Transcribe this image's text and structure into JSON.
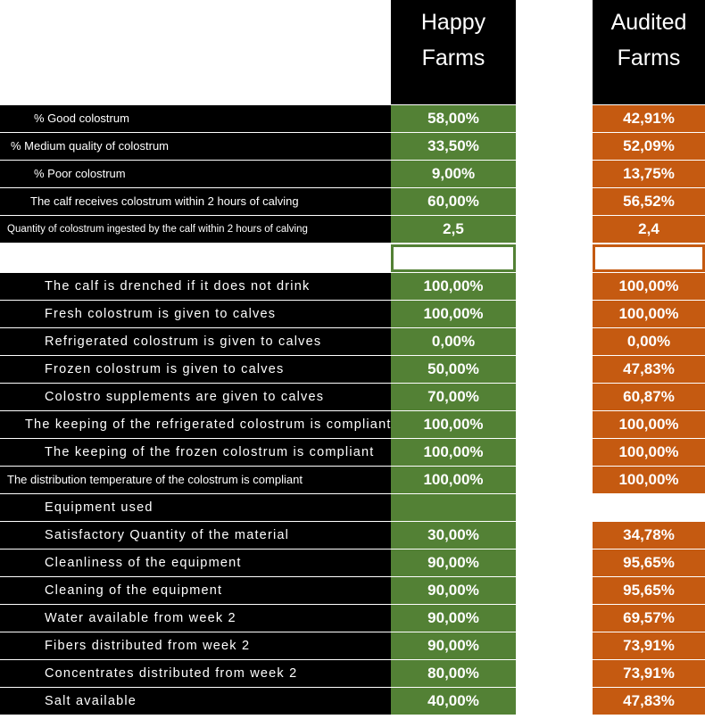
{
  "headers": {
    "happy": [
      "Happy",
      "Farms"
    ],
    "audited": [
      "Audited",
      "Farms"
    ]
  },
  "colors": {
    "happy": "#538135",
    "audited": "#c55a11",
    "label_bg": "#000000"
  },
  "section1": [
    {
      "label": "% Good colostrum",
      "happy": "58,00%",
      "audited": "42,91%"
    },
    {
      "label": "% Medium quality of colostrum",
      "happy": "33,50%",
      "audited": "52,09%"
    },
    {
      "label": "% Poor colostrum",
      "happy": "9,00%",
      "audited": "13,75%"
    },
    {
      "label": "The calf receives colostrum within 2 hours of calving",
      "happy": "60,00%",
      "audited": "56,52%"
    },
    {
      "label": "Quantity of colostrum ingested by the calf within 2 hours of calving",
      "happy": "2,5",
      "audited": "2,4"
    }
  ],
  "section2": [
    {
      "label": "The calf is drenched if it does not drink",
      "happy": "100,00%",
      "audited": "100,00%"
    },
    {
      "label": "Fresh colostrum is given to calves",
      "happy": "100,00%",
      "audited": "100,00%"
    },
    {
      "label": "Refrigerated colostrum is given to calves",
      "happy": "0,00%",
      "audited": "0,00%"
    },
    {
      "label": "Frozen colostrum is given to calves",
      "happy": "50,00%",
      "audited": "47,83%"
    },
    {
      "label": "Colostro supplements  are given to calves",
      "happy": "70,00%",
      "audited": "60,87%"
    },
    {
      "label": "The keeping of the  refrigerated colostrum is compliant",
      "happy": "100,00%",
      "audited": "100,00%"
    },
    {
      "label": "The keeping of the frozen colostrum is compliant",
      "happy": "100,00%",
      "audited": "100,00%"
    },
    {
      "label": "The distribution temperature of the colostrum is compliant",
      "happy": "100,00%",
      "audited": "100,00%"
    },
    {
      "label": "Equipment used",
      "happy": "",
      "audited": ""
    },
    {
      "label": "Satisfactory Quantity of the material",
      "happy": "30,00%",
      "audited": "34,78%"
    },
    {
      "label": "Cleanliness of the equipment",
      "happy": "90,00%",
      "audited": "95,65%"
    },
    {
      "label": "Cleaning of the equipment",
      "happy": "90,00%",
      "audited": "95,65%"
    },
    {
      "label": "Water available from week 2",
      "happy": "90,00%",
      "audited": "69,57%"
    },
    {
      "label": "Fibers distributed from week 2",
      "happy": "90,00%",
      "audited": "73,91%"
    },
    {
      "label": "Concentrates distributed from week 2",
      "happy": "80,00%",
      "audited": "73,91%"
    },
    {
      "label": "Salt available",
      "happy": "40,00%",
      "audited": "47,83%"
    }
  ]
}
